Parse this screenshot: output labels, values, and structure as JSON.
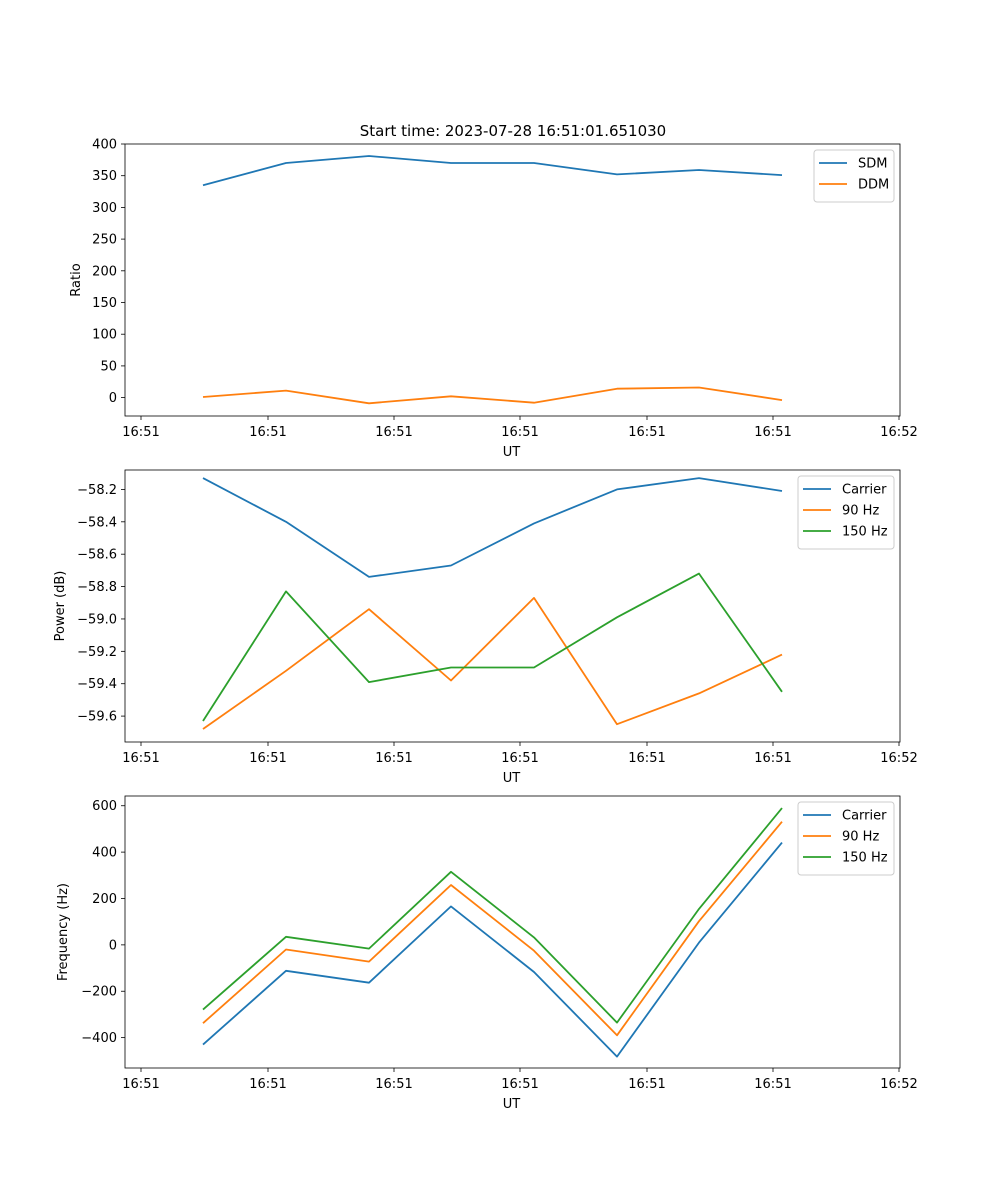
{
  "figure_title": "Start time: 2023-07-28 16:51:01.651030",
  "colors": {
    "blue": "#1f77b4",
    "orange": "#ff7f0e",
    "green": "#2ca02c"
  },
  "chart_data": [
    {
      "type": "line",
      "ylabel": "Ratio",
      "xlabel": "UT",
      "x_ticks": [
        "16:51",
        "16:51",
        "16:51",
        "16:51",
        "16:51",
        "16:51",
        "16:52"
      ],
      "y_ticks": [
        0,
        50,
        100,
        150,
        200,
        250,
        300,
        350,
        400
      ],
      "ylim": [
        -29,
        400
      ],
      "legend": "top-right",
      "series": [
        {
          "name": "SDM",
          "color": "#1f77b4",
          "values": [
            335,
            370,
            381,
            370,
            370,
            352,
            359,
            351
          ]
        },
        {
          "name": "DDM",
          "color": "#ff7f0e",
          "values": [
            1,
            11,
            -9,
            2,
            -8,
            14,
            16,
            -4
          ]
        }
      ]
    },
    {
      "type": "line",
      "ylabel": "Power (dB)",
      "xlabel": "UT",
      "x_ticks": [
        "16:51",
        "16:51",
        "16:51",
        "16:51",
        "16:51",
        "16:51",
        "16:52"
      ],
      "y_ticks": [
        -59.6,
        -59.4,
        -59.2,
        -59.0,
        -58.8,
        -58.6,
        -58.4,
        -58.2
      ],
      "y_tick_labels": [
        "−59.6",
        "−59.4",
        "−59.2",
        "−59.0",
        "−58.8",
        "−58.6",
        "−58.4",
        "−58.2"
      ],
      "ylim": [
        -59.76,
        -58.08
      ],
      "legend": "top-right",
      "series": [
        {
          "name": "Carrier",
          "color": "#1f77b4",
          "values": [
            -58.13,
            -58.4,
            -58.74,
            -58.67,
            -58.41,
            -58.2,
            -58.13,
            -58.21
          ]
        },
        {
          "name": "90 Hz",
          "color": "#ff7f0e",
          "values": [
            -59.68,
            -59.32,
            -58.94,
            -59.38,
            -58.87,
            -59.65,
            -59.46,
            -59.22
          ]
        },
        {
          "name": "150 Hz",
          "color": "#2ca02c",
          "values": [
            -59.63,
            -58.83,
            -59.39,
            -59.3,
            -59.3,
            -58.99,
            -58.72,
            -59.45
          ]
        }
      ]
    },
    {
      "type": "line",
      "ylabel": "Frequency (Hz)",
      "xlabel": "UT",
      "x_ticks": [
        "16:51",
        "16:51",
        "16:51",
        "16:51",
        "16:51",
        "16:51",
        "16:52"
      ],
      "y_ticks": [
        -400,
        -200,
        0,
        200,
        400,
        600
      ],
      "y_tick_labels": [
        "−400",
        "−200",
        "0",
        "200",
        "400",
        "600"
      ],
      "ylim": [
        -531,
        642
      ],
      "legend": "top-right",
      "series": [
        {
          "name": "Carrier",
          "color": "#1f77b4",
          "values": [
            -430,
            -112,
            -163,
            166,
            -117,
            -482,
            10,
            441
          ]
        },
        {
          "name": "90 Hz",
          "color": "#ff7f0e",
          "values": [
            -338,
            -20,
            -72,
            258,
            -25,
            -390,
            102,
            531
          ]
        },
        {
          "name": "150 Hz",
          "color": "#2ca02c",
          "values": [
            -279,
            35,
            -16,
            315,
            32,
            -335,
            155,
            590
          ]
        }
      ]
    }
  ]
}
